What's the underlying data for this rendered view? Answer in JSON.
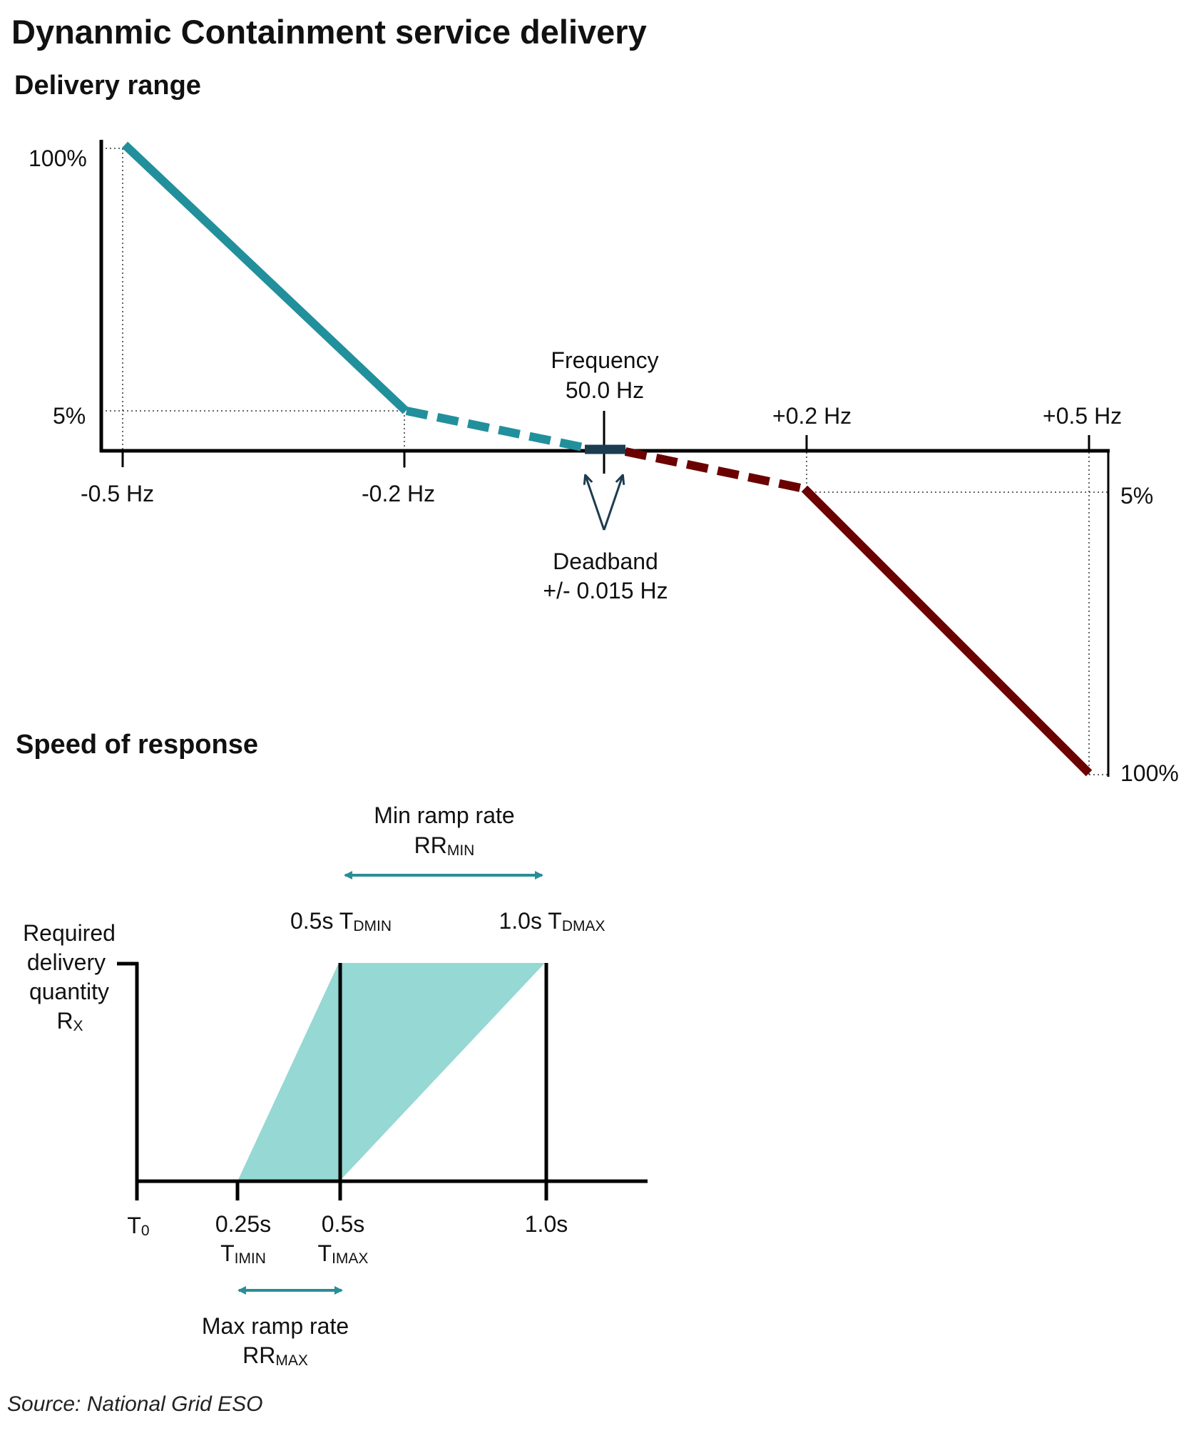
{
  "title": "Dynanmic Containment service delivery",
  "source": "Source: National Grid ESO",
  "colors": {
    "teal": "#21909c",
    "darkred": "#6b0000",
    "navy": "#1c3c50",
    "fill": "#96d8d3",
    "arrow": "#2a8e96"
  },
  "delivery_range": {
    "heading": "Delivery range",
    "y_left": {
      "top": "100%",
      "bottom": "5%"
    },
    "y_right": {
      "top": "5%",
      "bottom": "100%"
    },
    "x_left": {
      "far": "-0.5 Hz",
      "near": "-0.2 Hz"
    },
    "x_right": {
      "near": "+0.2 Hz",
      "far": "+0.5 Hz"
    },
    "center_line1": "Frequency",
    "center_line2": "50.0 Hz",
    "deadband_line1": "Deadband",
    "deadband_line2": "+/- 0.015 Hz"
  },
  "speed_of_response": {
    "heading": "Speed of response",
    "y_label": {
      "line1": "Required",
      "line2": "delivery",
      "line3": "quantity",
      "r": "R",
      "r_sub": "X"
    },
    "min_ramp": {
      "line1": "Min ramp rate",
      "rr": "RR",
      "rr_sub": "MIN"
    },
    "max_ramp": {
      "line1": "Max ramp rate",
      "rr": "RR",
      "rr_sub": "MAX"
    },
    "tdmin": {
      "time": "0.5s",
      "t": "T",
      "sub": "DMIN"
    },
    "tdmax": {
      "time": "1.0s",
      "t": "T",
      "sub": "DMAX"
    },
    "t0": {
      "t": "T",
      "sub": "0"
    },
    "timin": {
      "time": "0.25s",
      "t": "T",
      "sub": "IMIN"
    },
    "timax": {
      "time": "0.5s",
      "t": "T",
      "sub": "IMAX"
    },
    "t_end": "1.0s"
  }
}
